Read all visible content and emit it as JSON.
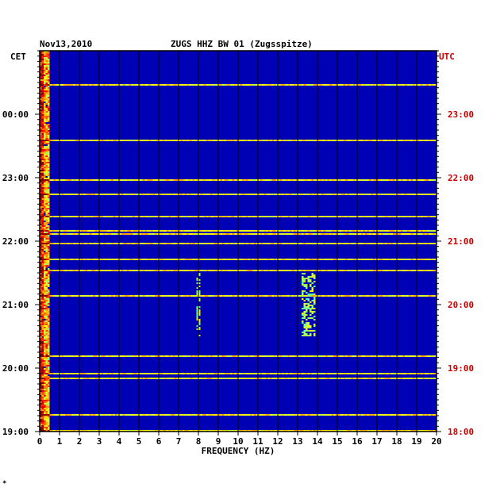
{
  "header": {
    "date": "Nov13,2010",
    "station": "ZUGS HHZ BW 01 (Zugsspitze)"
  },
  "left_axis_label": "CET",
  "right_axis_label": "UTC",
  "footer_mark": "*",
  "colors": {
    "background": "#0000b4",
    "utc_text": "#cc0000",
    "axis": "#000000"
  },
  "chart_data": {
    "type": "heatmap",
    "title": "ZUGS HHZ BW 01 (Zugsspitze)",
    "xlabel": "FREQUENCY (HZ)",
    "ylabel_left": "CET",
    "ylabel_right": "UTC",
    "xlim": [
      0,
      20
    ],
    "x_ticks": [
      "0",
      "1",
      "2",
      "3",
      "4",
      "5",
      "6",
      "7",
      "8",
      "9",
      "10",
      "11",
      "12",
      "13",
      "14",
      "15",
      "16",
      "17",
      "18",
      "19",
      "20"
    ],
    "y_ticks_left": [
      "00:00",
      "23:00",
      "22:00",
      "21:00",
      "20:00",
      "19:00"
    ],
    "y_ticks_right": [
      "23:00",
      "22:00",
      "21:00",
      "20:00",
      "19:00",
      "18:00"
    ],
    "time_range_utc": [
      "18:00",
      "24:00"
    ],
    "grid": true,
    "colormap": "jet (blue background, red = high power)",
    "features": [
      {
        "description": "strong energy band",
        "freq_range_hz": [
          0,
          0.5
        ]
      },
      {
        "description": "spectral line",
        "freq_range_hz": [
          13.2,
          13.8
        ],
        "time_utc": [
          "19:30",
          "20:30"
        ]
      },
      {
        "description": "spectral line",
        "freq_range_hz": [
          7.9,
          8.1
        ],
        "time_utc": [
          "19:30",
          "20:30"
        ]
      }
    ]
  }
}
